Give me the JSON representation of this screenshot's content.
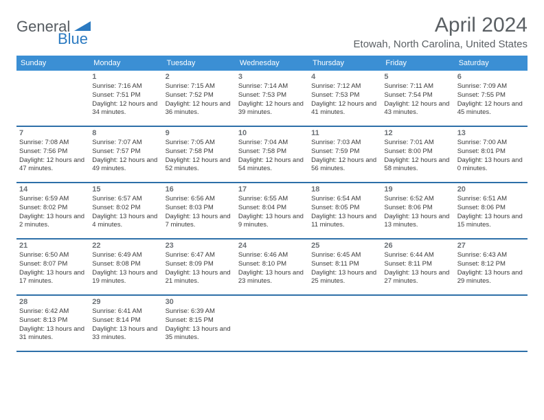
{
  "logo": {
    "general": "General",
    "blue": "Blue"
  },
  "title": "April 2024",
  "location": "Etowah, North Carolina, United States",
  "weekdays": [
    "Sunday",
    "Monday",
    "Tuesday",
    "Wednesday",
    "Thursday",
    "Friday",
    "Saturday"
  ],
  "colors": {
    "header_bg": "#3b8fd4",
    "header_text": "#ffffff",
    "row_border": "#2d6fa8",
    "text": "#3a3a3a",
    "title_text": "#5a5f63",
    "logo_gray": "#555b60",
    "logo_blue": "#2b7ac1",
    "background": "#ffffff"
  },
  "weeks": [
    [
      {
        "num": "",
        "sunrise": "",
        "sunset": "",
        "daylight": ""
      },
      {
        "num": "1",
        "sunrise": "Sunrise: 7:16 AM",
        "sunset": "Sunset: 7:51 PM",
        "daylight": "Daylight: 12 hours and 34 minutes."
      },
      {
        "num": "2",
        "sunrise": "Sunrise: 7:15 AM",
        "sunset": "Sunset: 7:52 PM",
        "daylight": "Daylight: 12 hours and 36 minutes."
      },
      {
        "num": "3",
        "sunrise": "Sunrise: 7:14 AM",
        "sunset": "Sunset: 7:53 PM",
        "daylight": "Daylight: 12 hours and 39 minutes."
      },
      {
        "num": "4",
        "sunrise": "Sunrise: 7:12 AM",
        "sunset": "Sunset: 7:53 PM",
        "daylight": "Daylight: 12 hours and 41 minutes."
      },
      {
        "num": "5",
        "sunrise": "Sunrise: 7:11 AM",
        "sunset": "Sunset: 7:54 PM",
        "daylight": "Daylight: 12 hours and 43 minutes."
      },
      {
        "num": "6",
        "sunrise": "Sunrise: 7:09 AM",
        "sunset": "Sunset: 7:55 PM",
        "daylight": "Daylight: 12 hours and 45 minutes."
      }
    ],
    [
      {
        "num": "7",
        "sunrise": "Sunrise: 7:08 AM",
        "sunset": "Sunset: 7:56 PM",
        "daylight": "Daylight: 12 hours and 47 minutes."
      },
      {
        "num": "8",
        "sunrise": "Sunrise: 7:07 AM",
        "sunset": "Sunset: 7:57 PM",
        "daylight": "Daylight: 12 hours and 49 minutes."
      },
      {
        "num": "9",
        "sunrise": "Sunrise: 7:05 AM",
        "sunset": "Sunset: 7:58 PM",
        "daylight": "Daylight: 12 hours and 52 minutes."
      },
      {
        "num": "10",
        "sunrise": "Sunrise: 7:04 AM",
        "sunset": "Sunset: 7:58 PM",
        "daylight": "Daylight: 12 hours and 54 minutes."
      },
      {
        "num": "11",
        "sunrise": "Sunrise: 7:03 AM",
        "sunset": "Sunset: 7:59 PM",
        "daylight": "Daylight: 12 hours and 56 minutes."
      },
      {
        "num": "12",
        "sunrise": "Sunrise: 7:01 AM",
        "sunset": "Sunset: 8:00 PM",
        "daylight": "Daylight: 12 hours and 58 minutes."
      },
      {
        "num": "13",
        "sunrise": "Sunrise: 7:00 AM",
        "sunset": "Sunset: 8:01 PM",
        "daylight": "Daylight: 13 hours and 0 minutes."
      }
    ],
    [
      {
        "num": "14",
        "sunrise": "Sunrise: 6:59 AM",
        "sunset": "Sunset: 8:02 PM",
        "daylight": "Daylight: 13 hours and 2 minutes."
      },
      {
        "num": "15",
        "sunrise": "Sunrise: 6:57 AM",
        "sunset": "Sunset: 8:02 PM",
        "daylight": "Daylight: 13 hours and 4 minutes."
      },
      {
        "num": "16",
        "sunrise": "Sunrise: 6:56 AM",
        "sunset": "Sunset: 8:03 PM",
        "daylight": "Daylight: 13 hours and 7 minutes."
      },
      {
        "num": "17",
        "sunrise": "Sunrise: 6:55 AM",
        "sunset": "Sunset: 8:04 PM",
        "daylight": "Daylight: 13 hours and 9 minutes."
      },
      {
        "num": "18",
        "sunrise": "Sunrise: 6:54 AM",
        "sunset": "Sunset: 8:05 PM",
        "daylight": "Daylight: 13 hours and 11 minutes."
      },
      {
        "num": "19",
        "sunrise": "Sunrise: 6:52 AM",
        "sunset": "Sunset: 8:06 PM",
        "daylight": "Daylight: 13 hours and 13 minutes."
      },
      {
        "num": "20",
        "sunrise": "Sunrise: 6:51 AM",
        "sunset": "Sunset: 8:06 PM",
        "daylight": "Daylight: 13 hours and 15 minutes."
      }
    ],
    [
      {
        "num": "21",
        "sunrise": "Sunrise: 6:50 AM",
        "sunset": "Sunset: 8:07 PM",
        "daylight": "Daylight: 13 hours and 17 minutes."
      },
      {
        "num": "22",
        "sunrise": "Sunrise: 6:49 AM",
        "sunset": "Sunset: 8:08 PM",
        "daylight": "Daylight: 13 hours and 19 minutes."
      },
      {
        "num": "23",
        "sunrise": "Sunrise: 6:47 AM",
        "sunset": "Sunset: 8:09 PM",
        "daylight": "Daylight: 13 hours and 21 minutes."
      },
      {
        "num": "24",
        "sunrise": "Sunrise: 6:46 AM",
        "sunset": "Sunset: 8:10 PM",
        "daylight": "Daylight: 13 hours and 23 minutes."
      },
      {
        "num": "25",
        "sunrise": "Sunrise: 6:45 AM",
        "sunset": "Sunset: 8:11 PM",
        "daylight": "Daylight: 13 hours and 25 minutes."
      },
      {
        "num": "26",
        "sunrise": "Sunrise: 6:44 AM",
        "sunset": "Sunset: 8:11 PM",
        "daylight": "Daylight: 13 hours and 27 minutes."
      },
      {
        "num": "27",
        "sunrise": "Sunrise: 6:43 AM",
        "sunset": "Sunset: 8:12 PM",
        "daylight": "Daylight: 13 hours and 29 minutes."
      }
    ],
    [
      {
        "num": "28",
        "sunrise": "Sunrise: 6:42 AM",
        "sunset": "Sunset: 8:13 PM",
        "daylight": "Daylight: 13 hours and 31 minutes."
      },
      {
        "num": "29",
        "sunrise": "Sunrise: 6:41 AM",
        "sunset": "Sunset: 8:14 PM",
        "daylight": "Daylight: 13 hours and 33 minutes."
      },
      {
        "num": "30",
        "sunrise": "Sunrise: 6:39 AM",
        "sunset": "Sunset: 8:15 PM",
        "daylight": "Daylight: 13 hours and 35 minutes."
      },
      {
        "num": "",
        "sunrise": "",
        "sunset": "",
        "daylight": ""
      },
      {
        "num": "",
        "sunrise": "",
        "sunset": "",
        "daylight": ""
      },
      {
        "num": "",
        "sunrise": "",
        "sunset": "",
        "daylight": ""
      },
      {
        "num": "",
        "sunrise": "",
        "sunset": "",
        "daylight": ""
      }
    ]
  ]
}
